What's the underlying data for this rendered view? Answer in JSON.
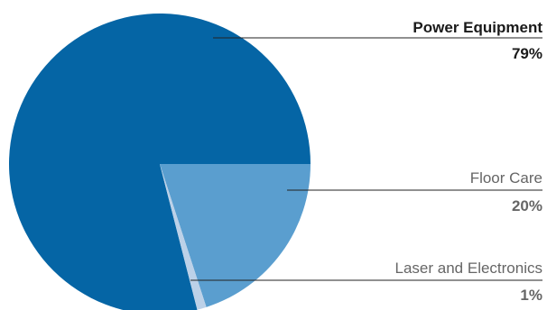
{
  "chart_data": {
    "type": "pie",
    "legend": "leader-line labels on the right",
    "slices": [
      {
        "label": "Power Equipment",
        "value": 79,
        "display": "79%",
        "color": "#0565a5",
        "label_emphasis": "bold",
        "label_color": "#1a1a1a",
        "value_color": "#1a1a1a"
      },
      {
        "label": "Floor Care",
        "value": 20,
        "display": "20%",
        "color": "#5a9ecf",
        "label_emphasis": "normal",
        "label_color": "#666666",
        "value_color": "#666666"
      },
      {
        "label": "Laser and Electronics",
        "value": 1,
        "display": "1%",
        "color": "#bcd1e8",
        "label_emphasis": "normal",
        "label_color": "#666666",
        "value_color": "#666666"
      }
    ],
    "leader_line_color": "#222222"
  }
}
